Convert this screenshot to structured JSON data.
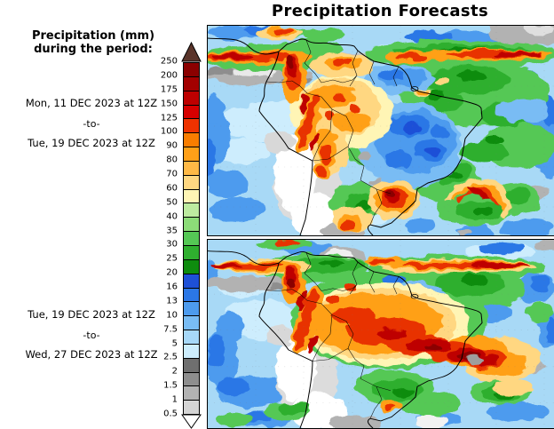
{
  "title": "Precipitation Forecasts",
  "sidebar": {
    "heading_line1": "Precipitation (mm)",
    "heading_line2": "during the period:",
    "period_top": {
      "start": "Mon, 11 DEC 2023 at 12Z",
      "separator": "-to-",
      "end": "Tue, 19 DEC 2023 at 12Z"
    },
    "period_bottom": {
      "start": "Tue, 19 DEC 2023 at 12Z",
      "separator": "-to-",
      "end": "Wed, 27 DEC 2023 at 12Z"
    }
  },
  "colorbar": {
    "ticks": [
      "250",
      "200",
      "175",
      "150",
      "125",
      "100",
      "90",
      "80",
      "70",
      "60",
      "50",
      "40",
      "35",
      "30",
      "25",
      "20",
      "16",
      "13",
      "10",
      "7.5",
      "5",
      "2.5",
      "2",
      "1.5",
      "1",
      "0.5"
    ],
    "band_colors": [
      "#8B0000",
      "#A30000",
      "#BE0000",
      "#D60000",
      "#EE3200",
      "#F97D00",
      "#FFA018",
      "#FFB946",
      "#FFD781",
      "#FFF5B5",
      "#BDEBA0",
      "#8CDC78",
      "#55C855",
      "#2FAF2F",
      "#0E8C0E",
      "#1E50D7",
      "#2B77E6",
      "#4D9BEE",
      "#79BCF4",
      "#A7D8F8",
      "#CDEDFD",
      "#6F6F6F",
      "#8E8E8E",
      "#B2B2B2",
      "#D4D4D4"
    ],
    "top_arrow_color": "#5A342A",
    "bottom_arrow_color": "#FFFFFF"
  }
}
